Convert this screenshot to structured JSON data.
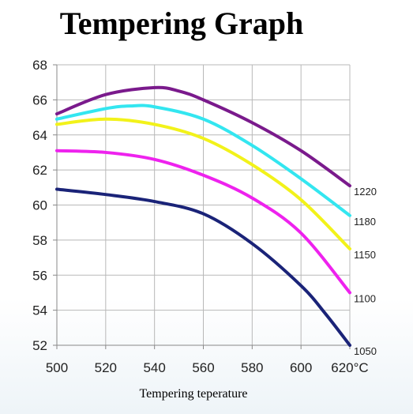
{
  "chart_data": {
    "type": "line",
    "title": "Tempering Graph",
    "xlabel": "Tempering teperature",
    "ylabel": "",
    "xlim": [
      500,
      620
    ],
    "ylim": [
      52,
      68
    ],
    "x_ticks": [
      "500",
      "520",
      "540",
      "560",
      "580",
      "600",
      "620°C"
    ],
    "y_ticks": [
      "52",
      "54",
      "56",
      "58",
      "60",
      "62",
      "64",
      "66",
      "68"
    ],
    "grid": true,
    "series": [
      {
        "name": "1220",
        "color": "#7a1a8c",
        "x": [
          500,
          520,
          540,
          550,
          560,
          580,
          600,
          620
        ],
        "y": [
          65.2,
          66.3,
          66.7,
          66.5,
          66.0,
          64.7,
          63.1,
          61.1
        ]
      },
      {
        "name": "1180",
        "color": "#33e6f0",
        "x": [
          500,
          520,
          530,
          540,
          560,
          580,
          600,
          620
        ],
        "y": [
          64.9,
          65.5,
          65.65,
          65.6,
          64.9,
          63.4,
          61.5,
          59.4
        ]
      },
      {
        "name": "1150",
        "color": "#f2f21a",
        "x": [
          500,
          520,
          540,
          560,
          580,
          600,
          620
        ],
        "y": [
          64.6,
          64.9,
          64.6,
          63.8,
          62.3,
          60.3,
          57.5
        ]
      },
      {
        "name": "1100",
        "color": "#ee22ee",
        "x": [
          500,
          520,
          540,
          560,
          580,
          600,
          620
        ],
        "y": [
          63.1,
          63.0,
          62.6,
          61.7,
          60.4,
          58.4,
          55.0
        ]
      },
      {
        "name": "1050",
        "color": "#1a2378",
        "x": [
          500,
          520,
          540,
          560,
          580,
          600,
          610,
          620
        ],
        "y": [
          60.9,
          60.6,
          60.2,
          59.5,
          57.8,
          55.4,
          53.8,
          52.0
        ]
      }
    ]
  }
}
